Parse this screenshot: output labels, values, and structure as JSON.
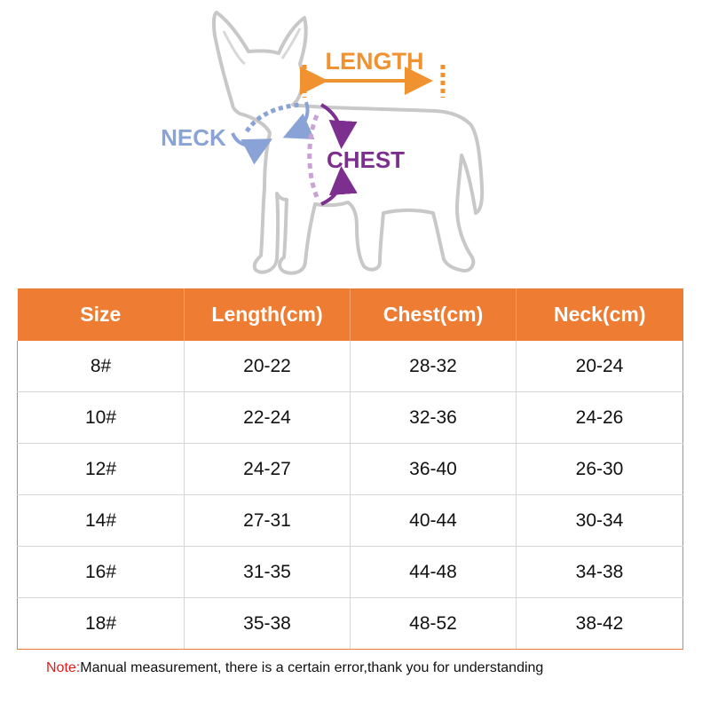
{
  "diagram": {
    "length_label": "LENGTH",
    "neck_label": "NECK",
    "chest_label": "CHEST",
    "colors": {
      "length": "#f0922f",
      "neck": "#8aa3d6",
      "chest": "#7d2f8f",
      "outline": "#c8c8c8"
    }
  },
  "table": {
    "header_color": "#ee7c33",
    "headers": [
      "Size",
      "Length(cm)",
      "Chest(cm)",
      "Neck(cm)"
    ],
    "rows": [
      [
        "8#",
        "20-22",
        "28-32",
        "20-24"
      ],
      [
        "10#",
        "22-24",
        "32-36",
        "24-26"
      ],
      [
        "12#",
        "24-27",
        "36-40",
        "26-30"
      ],
      [
        "14#",
        "27-31",
        "40-44",
        "30-34"
      ],
      [
        "16#",
        "31-35",
        "44-48",
        "34-38"
      ],
      [
        "18#",
        "35-38",
        "48-52",
        "38-42"
      ]
    ]
  },
  "note": {
    "label": "Note:",
    "text": "Manual measurement, there is a certain error,thank you for understanding"
  }
}
